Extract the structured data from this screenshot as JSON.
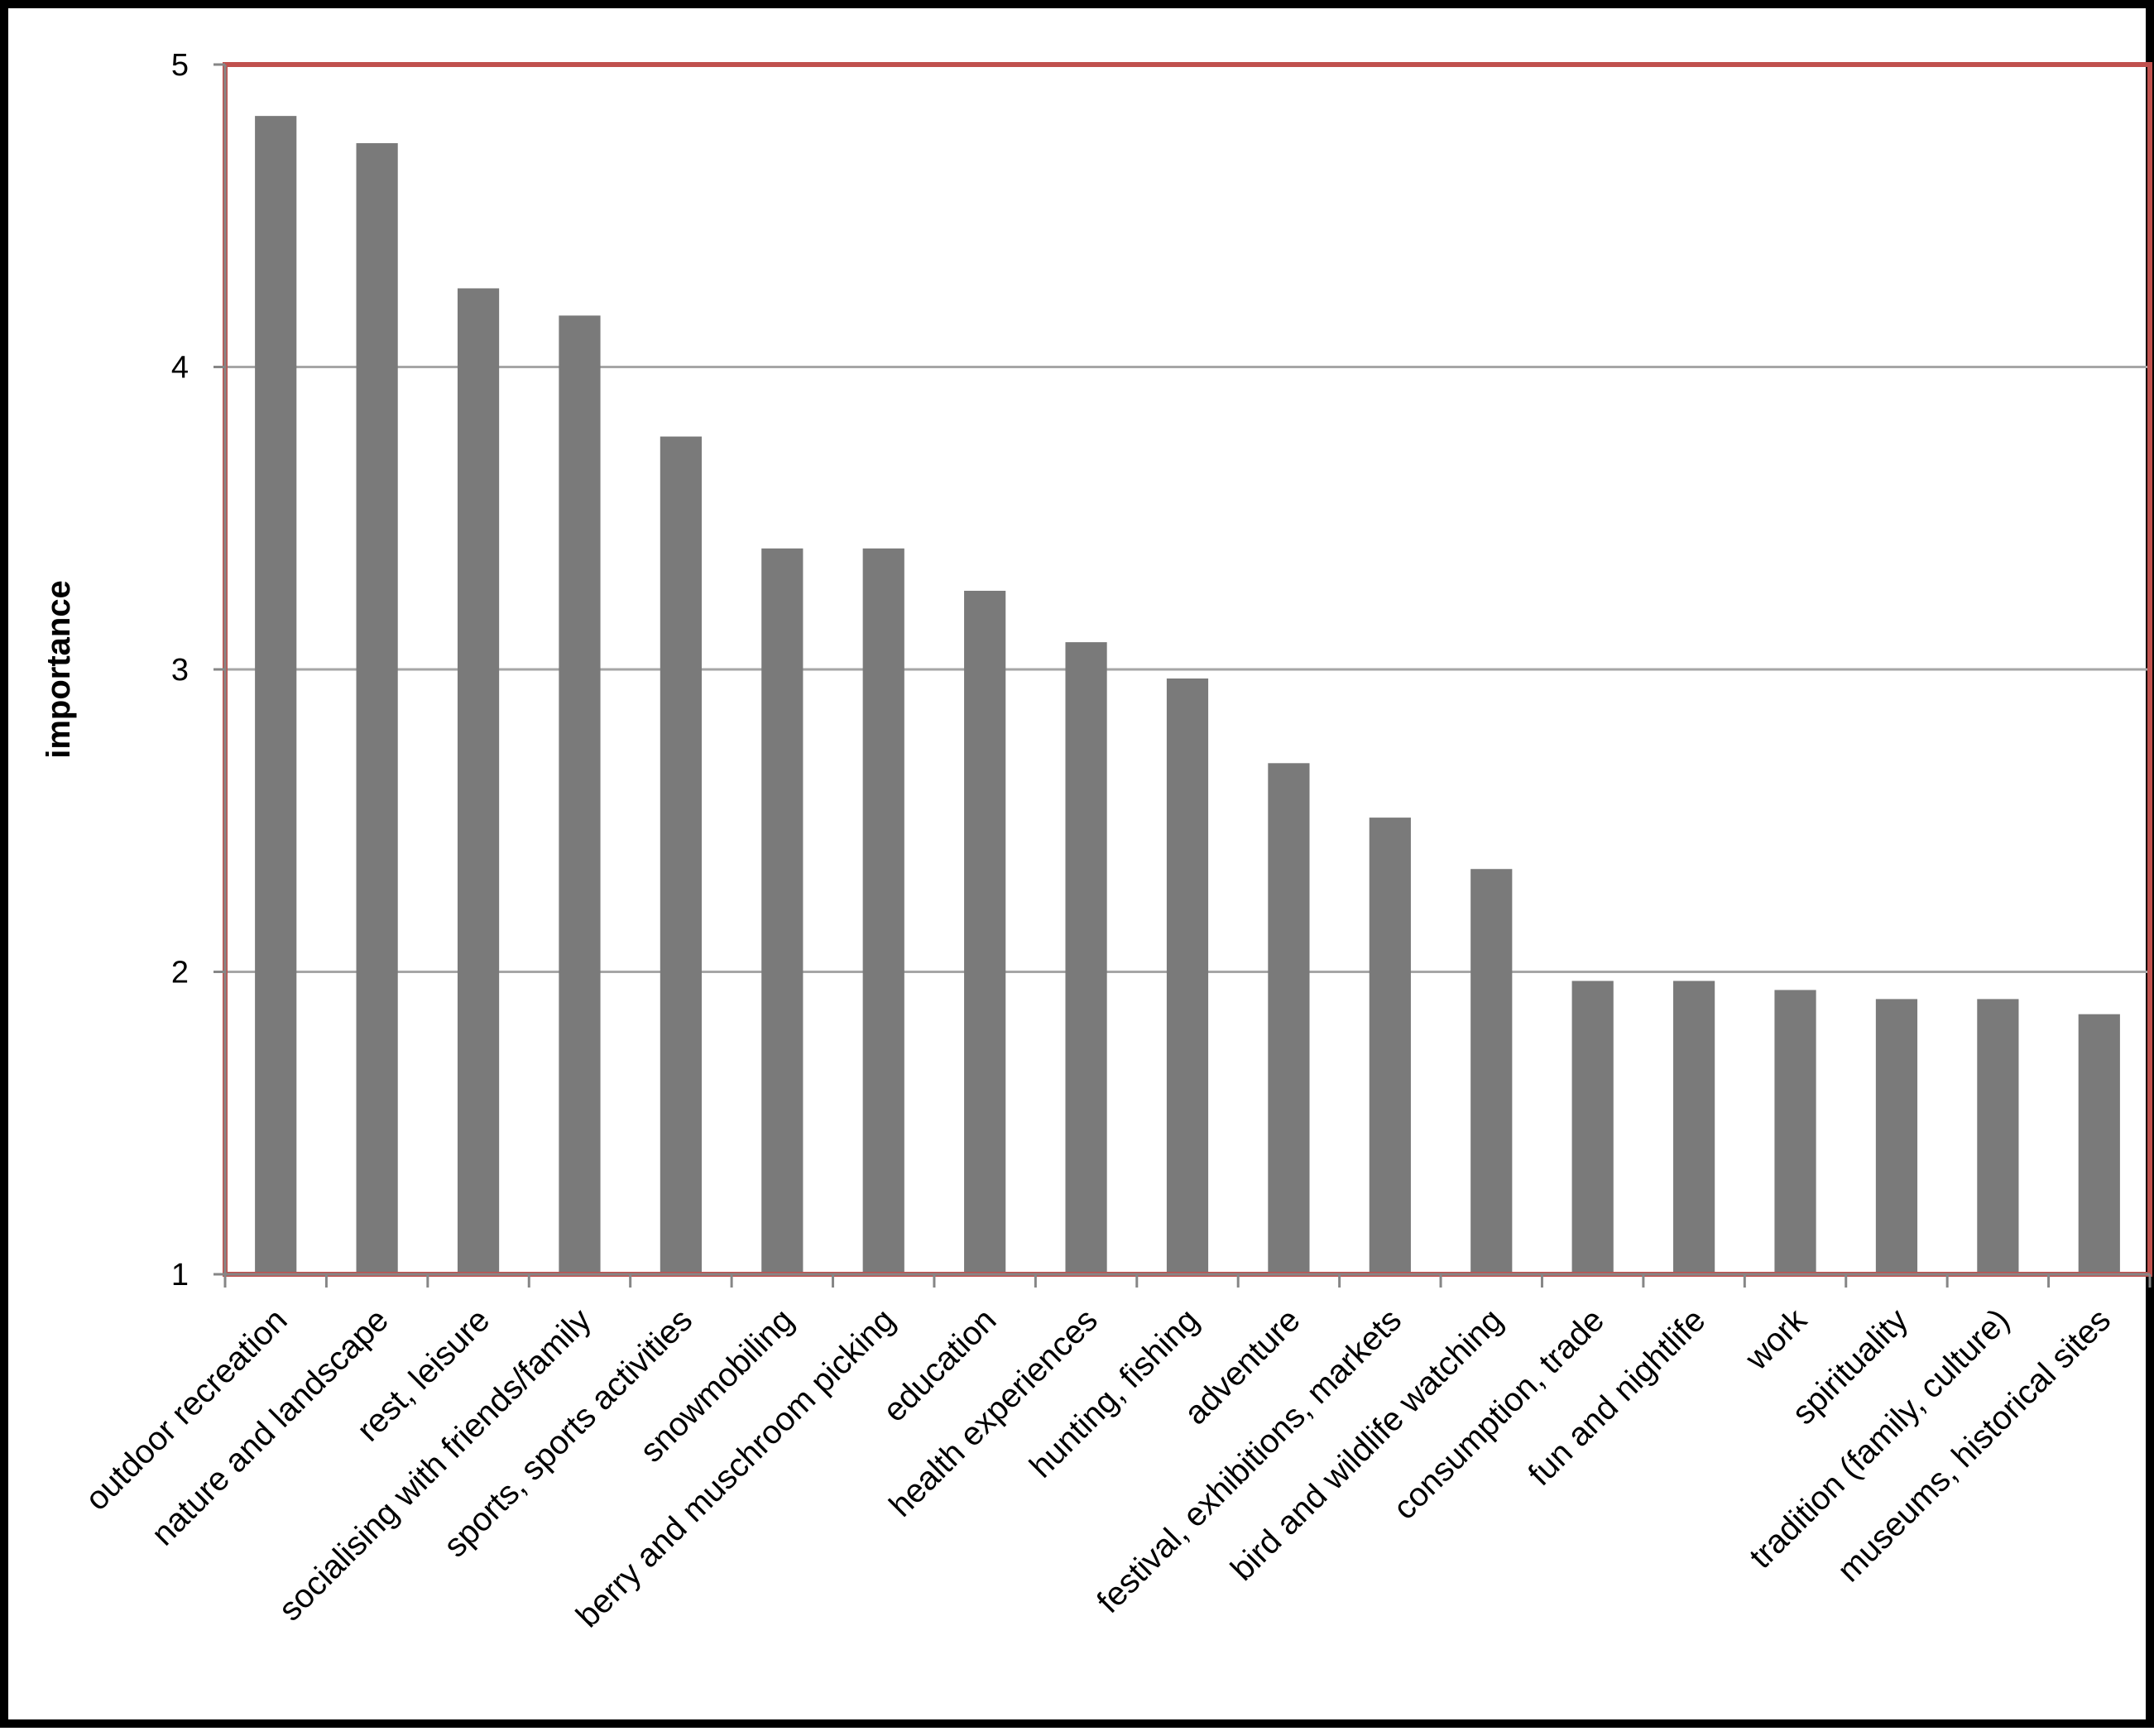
{
  "chart_data": {
    "type": "bar",
    "title": "",
    "xlabel": "",
    "ylabel": "importance",
    "ylim": [
      1,
      5
    ],
    "yticks": [
      1,
      2,
      3,
      4,
      5
    ],
    "grid": true,
    "colors": {
      "bar": "#7a7a7a",
      "plot_border": "#c0504d",
      "grid": "#a6a6a6",
      "axis": "#868686"
    },
    "categories": [
      "outdoor recreation",
      "nature and landscape",
      "rest, leisure",
      "socialising with friends/family",
      "sports, sports activities",
      "snowmobiling",
      "berry and muschroom picking",
      "education",
      "health experiences",
      "hunting, fishing",
      "adventure",
      "festival, exhibitions, markets",
      "bird and wildlife watching",
      "consumption, trade",
      "fun and nightlife",
      "work",
      "spirituality",
      "tradition (family, culture)",
      "museums, historical sites"
    ],
    "values": [
      4.83,
      4.74,
      4.26,
      4.17,
      3.77,
      3.4,
      3.4,
      3.26,
      3.09,
      2.97,
      2.69,
      2.51,
      2.34,
      1.97,
      1.97,
      1.94,
      1.91,
      1.91,
      1.86
    ]
  }
}
